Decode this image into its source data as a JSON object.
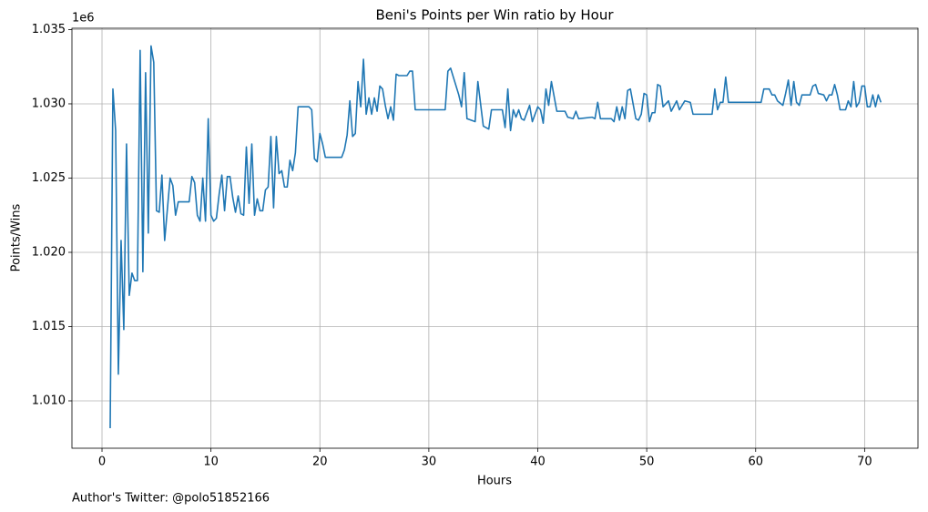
{
  "chart_data": {
    "type": "line",
    "title": "Beni's Points per Win ratio by Hour",
    "x_label": "Hours",
    "y_label": "Points/Wins",
    "y_offset_label": "1e6",
    "footnote": "Author's Twitter: @polo51852166",
    "grid": true,
    "color": "#1f77b4",
    "xlim": [
      -2.76,
      74.9
    ],
    "xticks": [
      0,
      10,
      20,
      30,
      40,
      50,
      60,
      70
    ],
    "ylim": [
      1006810,
      1035090
    ],
    "yticks": [
      {
        "value": 1010000,
        "label": "1.010"
      },
      {
        "value": 1015000,
        "label": "1.015"
      },
      {
        "value": 1020000,
        "label": "1.020"
      },
      {
        "value": 1025000,
        "label": "1.025"
      },
      {
        "value": 1030000,
        "label": "1.030"
      },
      {
        "value": 1035000,
        "label": "1.035"
      }
    ],
    "x": [
      0.75,
      1,
      1.25,
      1.5,
      1.75,
      2,
      2.25,
      2.5,
      2.75,
      3,
      3.25,
      3.5,
      3.75,
      4,
      4.25,
      4.5,
      4.75,
      5,
      5.25,
      5.5,
      5.75,
      6,
      6.25,
      6.5,
      6.75,
      7,
      7.75,
      8,
      8.25,
      8.5,
      8.75,
      9,
      9.25,
      9.5,
      9.75,
      10,
      10.25,
      10.5,
      10.75,
      11,
      11.25,
      11.5,
      11.75,
      12,
      12.25,
      12.5,
      12.75,
      13,
      13.25,
      13.5,
      13.75,
      14,
      14.25,
      14.5,
      14.75,
      15,
      15.25,
      15.5,
      15.75,
      16,
      16.25,
      16.5,
      16.75,
      17,
      17.25,
      17.5,
      17.75,
      18,
      19,
      19.25,
      19.5,
      19.75,
      20,
      20.25,
      20.5,
      22,
      22.25,
      22.5,
      22.75,
      23,
      23.25,
      23.5,
      23.75,
      24,
      24.25,
      24.5,
      24.75,
      25,
      25.25,
      25.5,
      25.75,
      26,
      26.25,
      26.5,
      26.75,
      27,
      27.25,
      28,
      28.25,
      28.5,
      28.75,
      31.5,
      31.75,
      32,
      32.75,
      33,
      33.25,
      33.5,
      34.25,
      34.5,
      35,
      35.5,
      35.75,
      36.75,
      37,
      37.25,
      37.5,
      37.75,
      38,
      38.25,
      38.5,
      38.75,
      39.25,
      39.5,
      40,
      40.25,
      40.5,
      40.75,
      41,
      41.25,
      41.75,
      42.5,
      42.75,
      43.25,
      43.5,
      43.75,
      45,
      45.25,
      45.5,
      45.75,
      46.75,
      47,
      47.25,
      47.5,
      47.75,
      48,
      48.25,
      48.5,
      49,
      49.25,
      49.5,
      49.75,
      50,
      50.25,
      50.5,
      50.75,
      51,
      51.25,
      51.5,
      52,
      52.25,
      52.75,
      53,
      53.5,
      54,
      54.25,
      56,
      56.25,
      56.5,
      56.75,
      57,
      57.25,
      57.5,
      60.5,
      60.75,
      61.25,
      61.5,
      61.75,
      62,
      62.5,
      62.75,
      63,
      63.25,
      63.5,
      63.75,
      64,
      64.25,
      65,
      65.25,
      65.5,
      65.75,
      66.25,
      66.5,
      66.75,
      67,
      67.25,
      67.5,
      67.75,
      68.25,
      68.5,
      68.75,
      69,
      69.25,
      69.5,
      69.75,
      70,
      70.25,
      70.5,
      70.75,
      71,
      71.25,
      71.5
    ],
    "values": [
      1008160,
      1031000,
      1028200,
      1011800,
      1020800,
      1014800,
      1027300,
      1017100,
      1018600,
      1018100,
      1018100,
      1033600,
      1018700,
      1032100,
      1021300,
      1033900,
      1032800,
      1022800,
      1022700,
      1025200,
      1020800,
      1022900,
      1025000,
      1024500,
      1022500,
      1023400,
      1023400,
      1023400,
      1025100,
      1024700,
      1022500,
      1022100,
      1025000,
      1022100,
      1029000,
      1022500,
      1022100,
      1022300,
      1023900,
      1025200,
      1022800,
      1025100,
      1025100,
      1023700,
      1022700,
      1023800,
      1022600,
      1022500,
      1027100,
      1023300,
      1027300,
      1022500,
      1023600,
      1022800,
      1022800,
      1024200,
      1024400,
      1027800,
      1023000,
      1027800,
      1025300,
      1025500,
      1024400,
      1024400,
      1026200,
      1025500,
      1026700,
      1029800,
      1029800,
      1029600,
      1026300,
      1026100,
      1028000,
      1027300,
      1026400,
      1026400,
      1026900,
      1027900,
      1030200,
      1027800,
      1028000,
      1031500,
      1029800,
      1033000,
      1029300,
      1030400,
      1029300,
      1030400,
      1029500,
      1031200,
      1031000,
      1029900,
      1029000,
      1029800,
      1028900,
      1032000,
      1031900,
      1031900,
      1032200,
      1032200,
      1029600,
      1029600,
      1032200,
      1032400,
      1030600,
      1029800,
      1032100,
      1029000,
      1028800,
      1031500,
      1028500,
      1028300,
      1029600,
      1029600,
      1028400,
      1031000,
      1028200,
      1029600,
      1029100,
      1029600,
      1029000,
      1028900,
      1029900,
      1028800,
      1029800,
      1029600,
      1028700,
      1031000,
      1029900,
      1031500,
      1029500,
      1029500,
      1029100,
      1029000,
      1029500,
      1029000,
      1029100,
      1029000,
      1030100,
      1029000,
      1029000,
      1028800,
      1029800,
      1028900,
      1029800,
      1029000,
      1030900,
      1031000,
      1029000,
      1028900,
      1029300,
      1030700,
      1030600,
      1028800,
      1029400,
      1029400,
      1031300,
      1031200,
      1029800,
      1030200,
      1029500,
      1030200,
      1029600,
      1030200,
      1030100,
      1029300,
      1029300,
      1031000,
      1029600,
      1030100,
      1030100,
      1031800,
      1030100,
      1030100,
      1031000,
      1031000,
      1030600,
      1030600,
      1030200,
      1029900,
      1030700,
      1031600,
      1029900,
      1031500,
      1030100,
      1029900,
      1030600,
      1030600,
      1031200,
      1031300,
      1030700,
      1030600,
      1030200,
      1030600,
      1030600,
      1031300,
      1030600,
      1029600,
      1029600,
      1030200,
      1029800,
      1031500,
      1029800,
      1030100,
      1031200,
      1031200,
      1029800,
      1029800,
      1030600,
      1029800,
      1030600,
      1030100
    ]
  }
}
